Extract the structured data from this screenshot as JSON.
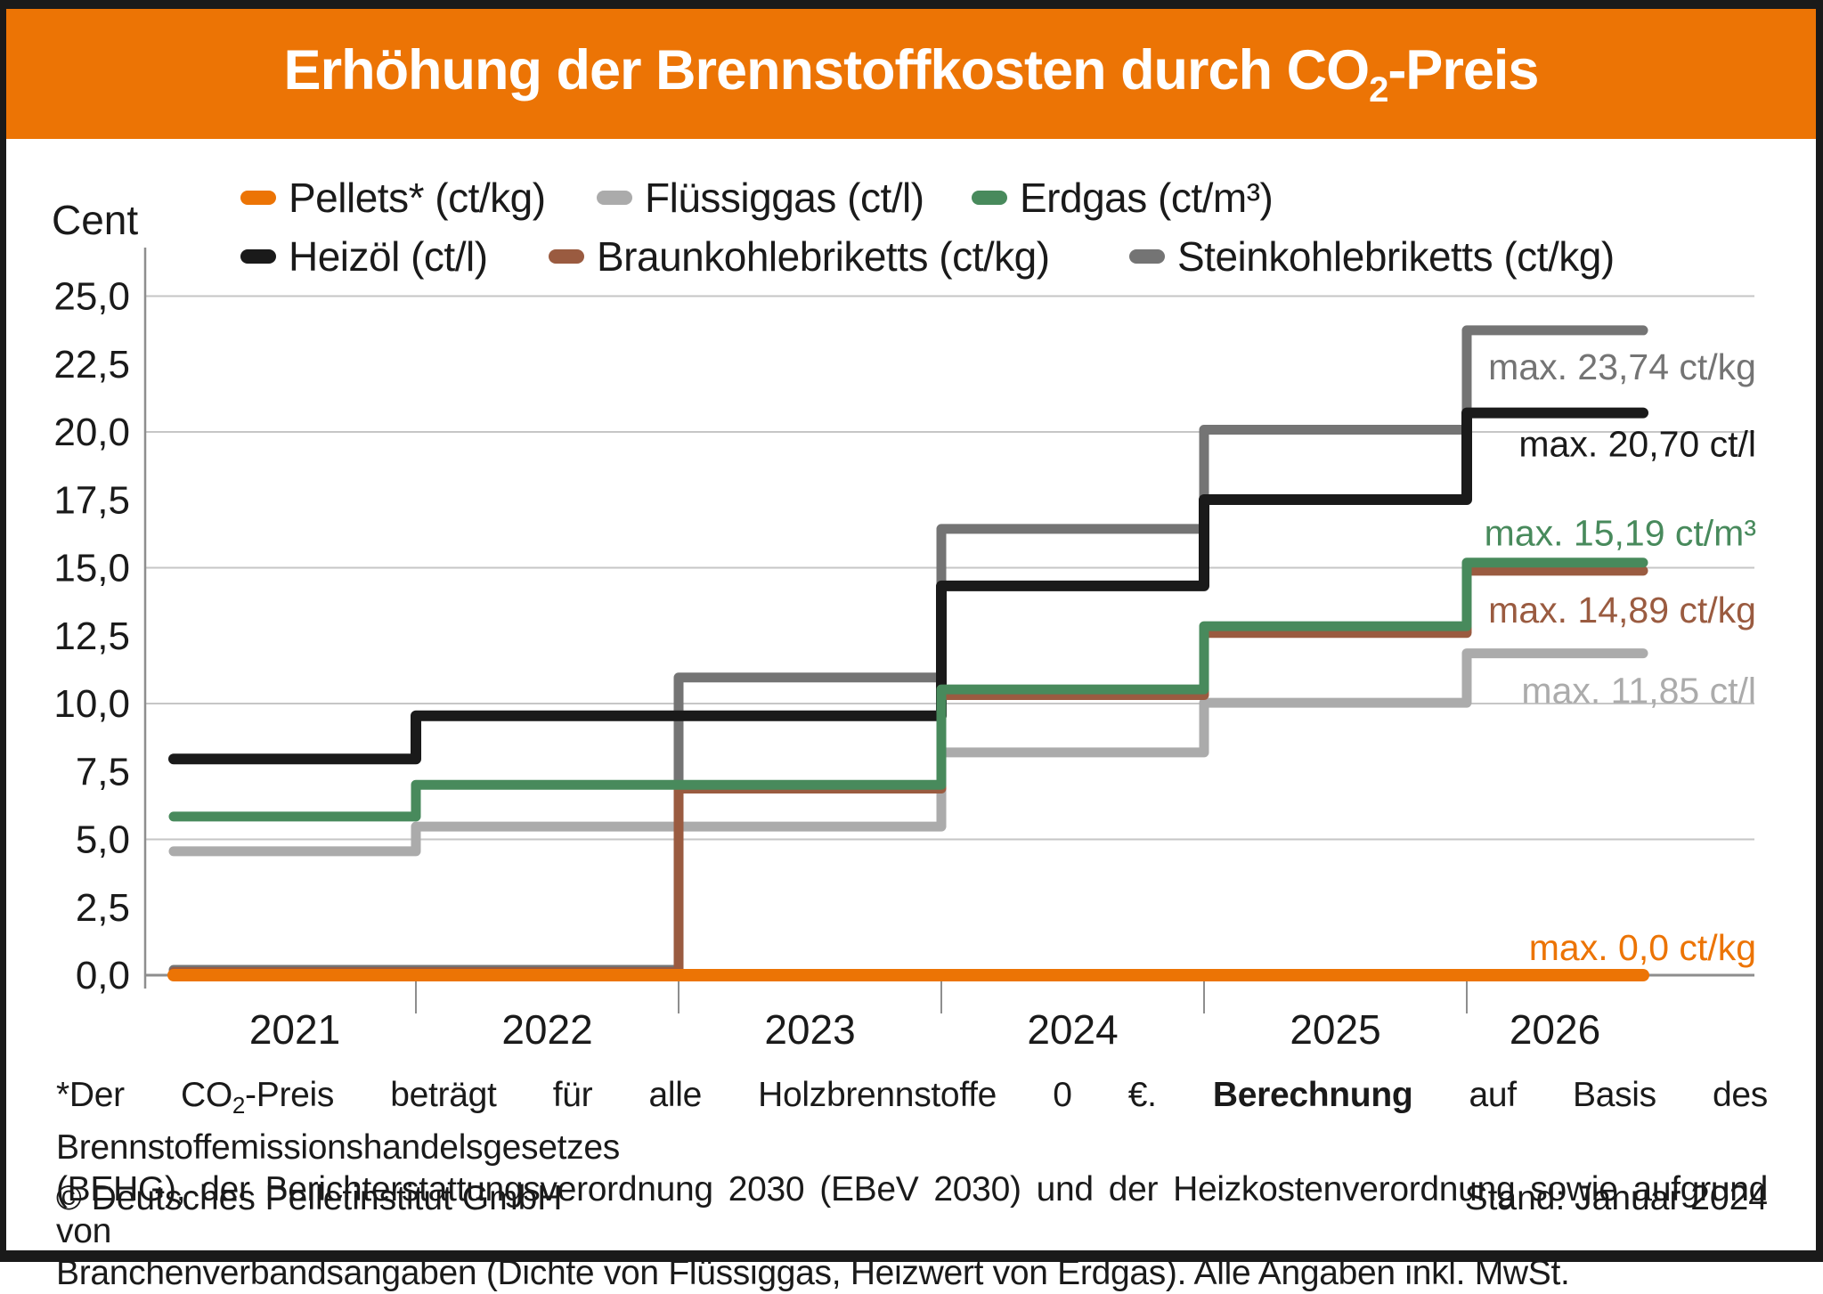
{
  "header": {
    "title_prefix": "Erhöhung der Brennstoffkosten durch CO",
    "title_sub": "2",
    "title_suffix": "-Preis",
    "bar_color": "#EC7405",
    "text_color": "#FFFFFF"
  },
  "axis": {
    "unit_label": "Cent",
    "y_tick_labels": [
      "25,0",
      "22,5",
      "20,0",
      "17,5",
      "15,0",
      "12,5",
      "10,0",
      "7,5",
      "5,0",
      "2,5",
      "0,0"
    ]
  },
  "chart_data": {
    "type": "line",
    "subtype": "step",
    "x_categories": [
      "2021",
      "2022",
      "2023",
      "2024",
      "2025",
      "2026"
    ],
    "ylabel": "Cent",
    "ylim": [
      0,
      25
    ],
    "ytick_step": 2.5,
    "gridline_step": 5,
    "grid": "horizontal",
    "legend_position": "top",
    "series": [
      {
        "id": "pellets",
        "name": "Pellets* (ct/kg)",
        "color": "#EC7405",
        "values": [
          0,
          0,
          0,
          0,
          0,
          0
        ],
        "max_label": "max. 0,0 ct/kg"
      },
      {
        "id": "fluessiggas",
        "name": "Flüssiggas (ct/l)",
        "color": "#ABABAB",
        "values": [
          4.56,
          5.47,
          5.47,
          8.2,
          10.03,
          11.85
        ],
        "max_label": "max. 11,85 ct/l"
      },
      {
        "id": "erdgas",
        "name": "Erdgas (ct/m³)",
        "color": "#488A5C",
        "values": [
          5.84,
          7.01,
          7.01,
          10.52,
          12.85,
          15.19
        ],
        "max_label": "max. 15,19 ct/m³"
      },
      {
        "id": "heizoel",
        "name": "Heizöl (ct/l)",
        "color": "#1A1A1A",
        "values": [
          7.96,
          9.55,
          9.55,
          14.33,
          17.51,
          20.7
        ],
        "max_label": "max. 20,70 ct/l"
      },
      {
        "id": "braunkohle",
        "name": "Braunkohlebriketts (ct/kg)",
        "color": "#9A5B40",
        "values": [
          0,
          0,
          6.87,
          10.31,
          12.6,
          14.89
        ],
        "max_label": "max. 14,89 ct/kg"
      },
      {
        "id": "steinkohle",
        "name": "Steinkohlebriketts (ct/kg)",
        "color": "#747474",
        "values": [
          0,
          0,
          10.96,
          16.43,
          20.08,
          23.74
        ],
        "max_label": "max. 23,74 ct/kg"
      }
    ]
  },
  "footnote": {
    "line1_pre": "*Der CO",
    "line1_sub": "2",
    "line1_mid": "-Preis beträgt für alle Holzbrennstoffe 0 €. ",
    "line1_bold": "Berechnung",
    "line1_rest": " auf Basis des Brennstoffemissionshandelsgesetzes",
    "line2": "(BEHG), der Berichterstattungsverordnung 2030 (EBeV 2030) und der Heizkostenverordnung sowie aufgrund von",
    "line3": "Branchenverbandsangaben (Dichte von Flüssiggas, Heizwert von Erdgas). Alle Angaben inkl. MwSt."
  },
  "footer": {
    "copyright": "© Deutsches Pelletinstitut GmbH",
    "stand": "Stand: Januar 2024"
  }
}
